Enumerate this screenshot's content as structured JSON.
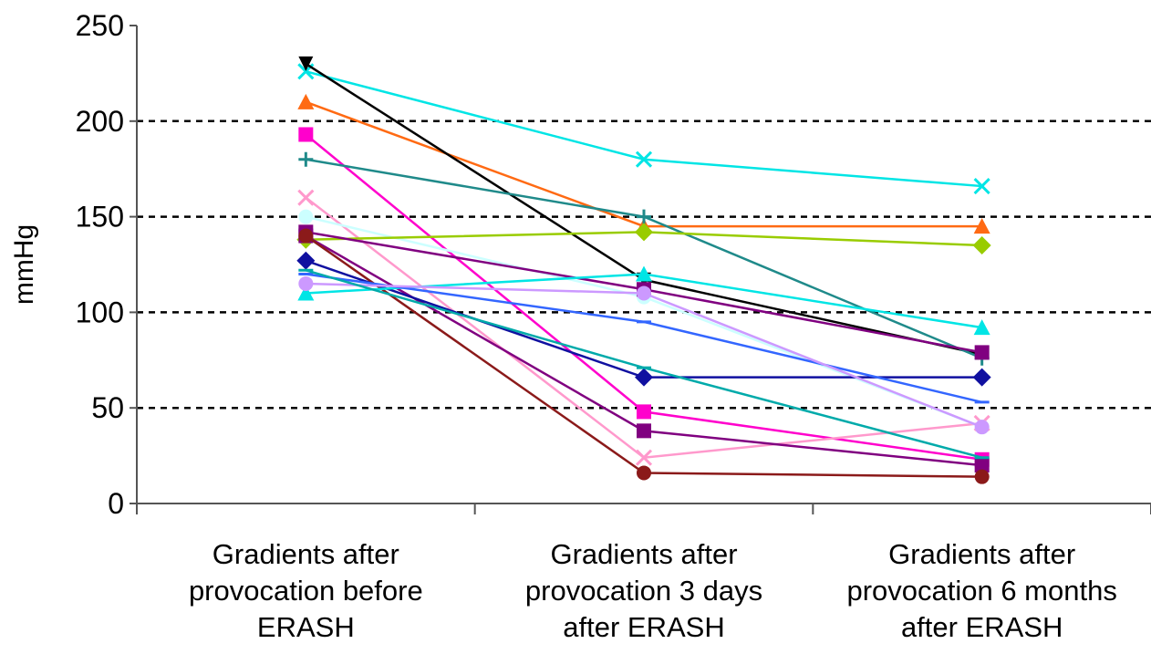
{
  "chart_data": {
    "type": "line",
    "title": "",
    "ylabel": "mmHg",
    "xlabel": "",
    "ylim": [
      0,
      250
    ],
    "yticks": [
      0,
      50,
      100,
      150,
      200,
      250
    ],
    "grid": "horizontal dashed at 50, 100, 150, 200",
    "legend": "none",
    "categories": [
      [
        "Gradients after",
        "provocation before",
        "ERASH"
      ],
      [
        "Gradients after",
        "provocation 3 days",
        "after ERASH"
      ],
      [
        "Gradients after",
        "provocation 6 months",
        "after ERASH"
      ]
    ],
    "series": [
      {
        "color": "#00e5e5",
        "marker": "x",
        "values": [
          226,
          180,
          166
        ]
      },
      {
        "color": "#ff6a13",
        "marker": "triangle",
        "values": [
          210,
          145,
          145
        ]
      },
      {
        "color": "#000000",
        "marker": "tri-down",
        "values": [
          230,
          117,
          78
        ]
      },
      {
        "color": "#ff00cc",
        "marker": "square",
        "values": [
          193,
          48,
          23
        ]
      },
      {
        "color": "#1f8a8a",
        "marker": "plus",
        "values": [
          180,
          150,
          76
        ]
      },
      {
        "color": "#ff99cc",
        "marker": "x",
        "values": [
          160,
          24,
          42
        ]
      },
      {
        "color": "#ccffff",
        "marker": "circle",
        "values": [
          150,
          108,
          40
        ]
      },
      {
        "color": "#99cc00",
        "marker": "diamond",
        "values": [
          138,
          142,
          135
        ]
      },
      {
        "color": "#800080",
        "marker": "square",
        "values": [
          142,
          112,
          79
        ]
      },
      {
        "color": "#800080",
        "marker": "square",
        "values": [
          140,
          38,
          20
        ]
      },
      {
        "color": "#8b1a1a",
        "marker": "circle",
        "values": [
          140,
          16,
          14
        ]
      },
      {
        "color": "#1010a0",
        "marker": "diamond",
        "values": [
          127,
          66,
          66
        ]
      },
      {
        "color": "#00e5e5",
        "marker": "triangle",
        "values": [
          110,
          120,
          92
        ]
      },
      {
        "color": "#3366ff",
        "marker": "minus",
        "values": [
          120,
          95,
          53
        ]
      },
      {
        "color": "#cc99ff",
        "marker": "circle",
        "values": [
          115,
          110,
          40
        ]
      },
      {
        "color": "#00aaaa",
        "marker": "minus",
        "values": [
          122,
          71,
          24
        ]
      }
    ]
  }
}
